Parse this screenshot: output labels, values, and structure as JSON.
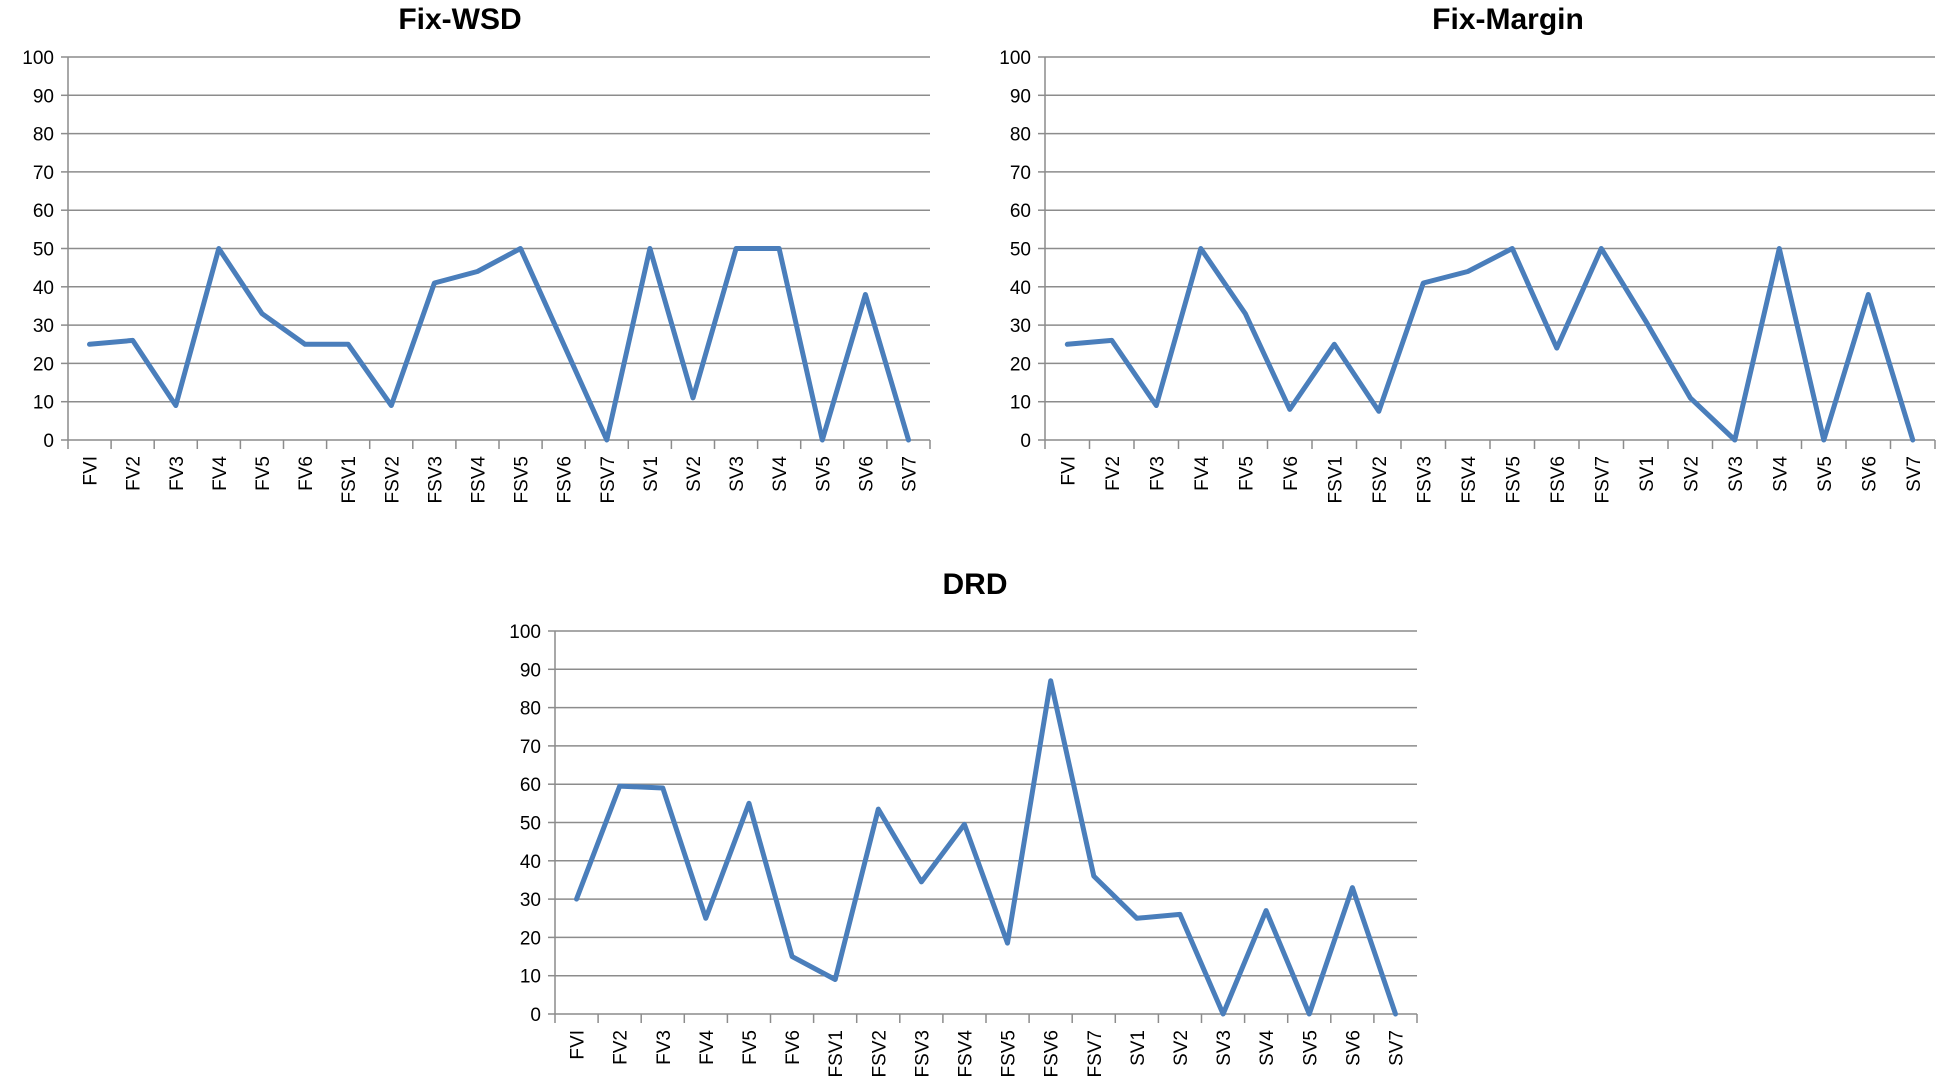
{
  "accent_color": "#4a7ebb",
  "chart_data": [
    {
      "type": "line",
      "title": "Fix-WSD",
      "xlabel": "",
      "ylabel": "",
      "ylim": [
        0,
        100
      ],
      "yticks": [
        "0",
        "10",
        "20",
        "30",
        "40",
        "50",
        "60",
        "70",
        "80",
        "90",
        "100"
      ],
      "categories": [
        "FVI",
        "FV2",
        "FV3",
        "FV4",
        "FV5",
        "FV6",
        "FSV1",
        "FSV2",
        "FSV3",
        "FSV4",
        "FSV5",
        "FSV6",
        "FSV7",
        "SV1",
        "SV2",
        "SV3",
        "SV4",
        "SV5",
        "SV6",
        "SV7"
      ],
      "series": [
        {
          "name": "Fix-WSD",
          "color": "#4a7ebb",
          "values": [
            25,
            26,
            9,
            50,
            33,
            25,
            25,
            9,
            41,
            44,
            50,
            25,
            0,
            50,
            11,
            50,
            50,
            0,
            38,
            0
          ]
        }
      ],
      "grid": true,
      "legend": "none"
    },
    {
      "type": "line",
      "title": "Fix-Margin",
      "xlabel": "",
      "ylabel": "",
      "ylim": [
        0,
        100
      ],
      "yticks": [
        "0",
        "10",
        "20",
        "30",
        "40",
        "50",
        "60",
        "70",
        "80",
        "90",
        "100"
      ],
      "categories": [
        "FVI",
        "FV2",
        "FV3",
        "FV4",
        "FV5",
        "FV6",
        "FSV1",
        "FSV2",
        "FSV3",
        "FSV4",
        "FSV5",
        "FSV6",
        "FSV7",
        "SV1",
        "SV2",
        "SV3",
        "SV4",
        "SV5",
        "SV6",
        "SV7"
      ],
      "series": [
        {
          "name": "Fix-Margin",
          "color": "#4a7ebb",
          "values": [
            25,
            26,
            9,
            50,
            33,
            8,
            25,
            7.5,
            41,
            44,
            50,
            24,
            50,
            31,
            11,
            0,
            50,
            0,
            38,
            0
          ]
        }
      ],
      "grid": true,
      "legend": "none"
    },
    {
      "type": "line",
      "title": "DRD",
      "xlabel": "",
      "ylabel": "",
      "ylim": [
        0,
        100
      ],
      "yticks": [
        "0",
        "10",
        "20",
        "30",
        "40",
        "50",
        "60",
        "70",
        "80",
        "90",
        "100"
      ],
      "categories": [
        "FVI",
        "FV2",
        "FV3",
        "FV4",
        "FV5",
        "FV6",
        "FSV1",
        "FSV2",
        "FSV3",
        "FSV4",
        "FSV5",
        "FSV6",
        "FSV7",
        "SV1",
        "SV2",
        "SV3",
        "SV4",
        "SV5",
        "SV6",
        "SV7"
      ],
      "series": [
        {
          "name": "DRD",
          "color": "#4a7ebb",
          "values": [
            30,
            59.5,
            59,
            25,
            55,
            15,
            9,
            53.5,
            34.5,
            49.5,
            18.5,
            87,
            36,
            25,
            26,
            0,
            27,
            0,
            33,
            0
          ]
        }
      ],
      "grid": true,
      "legend": "none"
    }
  ]
}
